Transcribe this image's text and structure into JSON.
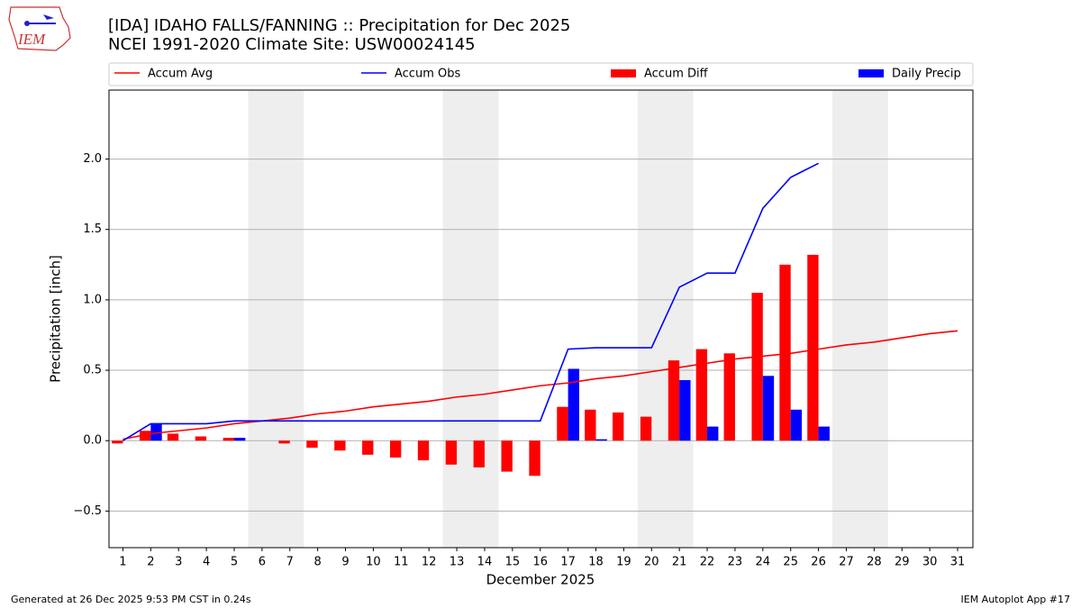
{
  "chart_data": {
    "type": "bar",
    "title": "[IDA] IDAHO FALLS/FANNING :: Precipitation for Dec 2025",
    "subtitle": "NCEI 1991-2020 Climate Site: USW00024145",
    "xlabel": "December 2025",
    "ylabel": "Precipitation [inch]",
    "logo_text": "IEM",
    "footer_left": "Generated at 26 Dec 2025 9:53 PM CST in 0.24s",
    "footer_right": "IEM Autoplot App #17",
    "x": [
      1,
      2,
      3,
      4,
      5,
      6,
      7,
      8,
      9,
      10,
      11,
      12,
      13,
      14,
      15,
      16,
      17,
      18,
      19,
      20,
      21,
      22,
      23,
      24,
      25,
      26,
      27,
      28,
      29,
      30,
      31
    ],
    "xlim": [
      0.5,
      31.55
    ],
    "xticks": [
      1,
      2,
      3,
      4,
      5,
      6,
      7,
      8,
      9,
      10,
      11,
      12,
      13,
      14,
      15,
      16,
      17,
      18,
      19,
      20,
      21,
      22,
      23,
      24,
      25,
      26,
      27,
      28,
      29,
      30,
      31
    ],
    "ylim": [
      -0.76,
      2.49
    ],
    "yticks": [
      {
        "value": -0.5,
        "label": "−0.5"
      },
      {
        "value": 0,
        "label": "0.0"
      },
      0.5,
      {
        "value": 1,
        "label": "1.0"
      },
      1.5,
      {
        "value": 2,
        "label": "2.0"
      }
    ],
    "grid": true,
    "shaded_spans": [
      [
        5.5,
        7.5
      ],
      [
        12.5,
        14.5
      ],
      [
        19.5,
        21.5
      ],
      [
        26.5,
        28.5
      ]
    ],
    "shade_color": "#eeeeee",
    "legend": "top",
    "series": [
      {
        "name": "Accum Avg",
        "type": "line",
        "color": "#ff0000",
        "values": [
          0.01,
          0.05,
          0.07,
          0.09,
          0.12,
          0.14,
          0.16,
          0.19,
          0.21,
          0.24,
          0.26,
          0.28,
          0.31,
          0.33,
          0.36,
          0.39,
          0.41,
          0.44,
          0.46,
          0.49,
          0.52,
          0.55,
          0.58,
          0.6,
          0.62,
          0.65,
          0.68,
          0.7,
          0.73,
          0.76,
          0.78
        ]
      },
      {
        "name": "Accum Obs",
        "type": "line",
        "color": "#0000ff",
        "values": [
          0.0,
          0.12,
          0.12,
          0.12,
          0.14,
          0.14,
          0.14,
          0.14,
          0.14,
          0.14,
          0.14,
          0.14,
          0.14,
          0.14,
          0.14,
          0.14,
          0.65,
          0.66,
          0.66,
          0.66,
          1.09,
          1.19,
          1.19,
          1.65,
          1.87,
          1.97,
          null,
          null,
          null,
          null,
          null
        ]
      },
      {
        "name": "Accum Diff",
        "type": "bar",
        "color": "#ff0000",
        "values": [
          -0.02,
          0.07,
          0.05,
          0.03,
          0.02,
          0.0,
          -0.02,
          -0.05,
          -0.07,
          -0.1,
          -0.12,
          -0.14,
          -0.17,
          -0.19,
          -0.22,
          -0.25,
          0.24,
          0.22,
          0.2,
          0.17,
          0.57,
          0.65,
          0.62,
          1.05,
          1.25,
          1.32,
          null,
          null,
          null,
          null,
          null
        ]
      },
      {
        "name": "Daily Precip",
        "type": "bar",
        "color": "#0000ff",
        "values": [
          0,
          0.12,
          0,
          0,
          0.02,
          0,
          0,
          0,
          0,
          0,
          0,
          0,
          0,
          0,
          0,
          0,
          0.51,
          0.01,
          0,
          0,
          0.43,
          0.1,
          0,
          0.46,
          0.22,
          0.1,
          null,
          null,
          null,
          null,
          null
        ]
      }
    ]
  }
}
